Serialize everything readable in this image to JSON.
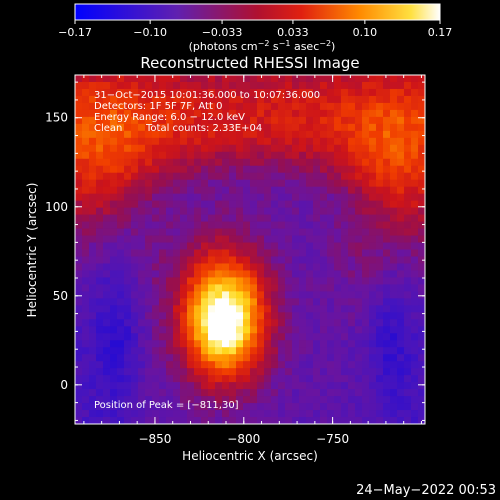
{
  "chart_data": {
    "type": "heatmap",
    "title": "Reconstructed RHESSI Image",
    "xlabel": "Heliocentric X (arcsec)",
    "ylabel": "Heliocentric Y (arcsec)",
    "xlim": [
      -895,
      -698
    ],
    "ylim": [
      -22,
      174
    ],
    "x_ticks": [
      -850,
      -800,
      -750
    ],
    "x_tick_labels": [
      "−850",
      "−800",
      "−750"
    ],
    "y_ticks": [
      0,
      50,
      100,
      150
    ],
    "y_tick_labels": [
      "0",
      "50",
      "100",
      "150"
    ],
    "colorbar": {
      "range": [
        -0.17,
        0.17
      ],
      "ticks": [
        -0.17,
        -0.1,
        -0.033,
        0.033,
        0.1,
        0.17
      ],
      "tick_labels": [
        "−0.17",
        "−0.10",
        "−0.033",
        "0.033",
        "0.10",
        "0.17"
      ],
      "unit_main": "(photons cm",
      "unit_sup1": "−2",
      "unit_mid": " s",
      "unit_sup2": "−1",
      "unit_mid2": " asec",
      "unit_sup3": "−2",
      "unit_end": ")"
    },
    "annotations": {
      "time_range": "31−Oct−2015 10:01:36.000 to 10:07:36.000",
      "detectors": "Detectors: 1F 5F 7F, Att 0",
      "energy": "Energy Range: 6.0 − 12.0 keV",
      "method": "Clean",
      "counts": "Total counts: 2.33E+04",
      "peak": "Position of Peak = [−811,30]"
    },
    "sources": [
      {
        "label": "peak",
        "x": -811,
        "y": 30
      }
    ]
  },
  "footer": {
    "date": "24−May−2022 00:53"
  },
  "colors": {
    "background": "#000000",
    "colormap": [
      "#0000ff",
      "#5a1fb0",
      "#c81e1e",
      "#ff6a00",
      "#ffe030",
      "#ffffff"
    ]
  }
}
